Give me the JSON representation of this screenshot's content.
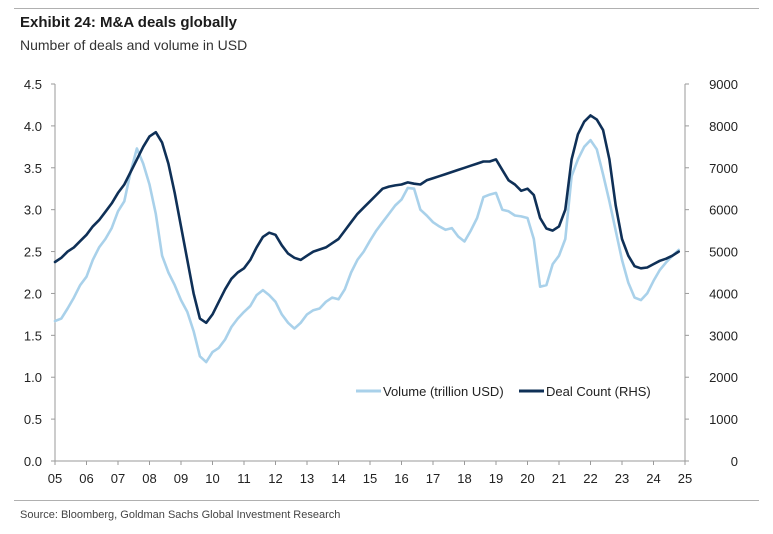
{
  "header": {
    "title": "Exhibit 24: M&A deals globally",
    "subtitle": "Number of deals and volume in USD"
  },
  "footer": {
    "source": "Source: Bloomberg, Goldman Sachs Global Investment Research"
  },
  "colors": {
    "volume": "#a9d1ea",
    "deal_count": "#0f3057",
    "axis": "#9a9a9a"
  },
  "chart_data": {
    "type": "line",
    "title": "Exhibit 24: M&A deals globally",
    "subtitle": "Number of deals and volume in USD",
    "xlabel": "",
    "ylabel": "",
    "xlim": [
      5,
      25
    ],
    "ylim_left": [
      0,
      4.5
    ],
    "ylim_right": [
      0,
      9000
    ],
    "x_tick_values": [
      5,
      6,
      7,
      8,
      9,
      10,
      11,
      12,
      13,
      14,
      15,
      16,
      17,
      18,
      19,
      20,
      21,
      22,
      23,
      24,
      25
    ],
    "x_tick_labels": [
      "05",
      "06",
      "07",
      "08",
      "09",
      "10",
      "11",
      "12",
      "13",
      "14",
      "15",
      "16",
      "17",
      "18",
      "19",
      "20",
      "21",
      "22",
      "23",
      "24",
      "25"
    ],
    "y_left_tick_values": [
      0,
      0.5,
      1.0,
      1.5,
      2.0,
      2.5,
      3.0,
      3.5,
      4.0,
      4.5
    ],
    "y_left_tick_labels": [
      "0.0",
      "0.5",
      "1.0",
      "1.5",
      "2.0",
      "2.5",
      "3.0",
      "3.5",
      "4.0",
      "4.5"
    ],
    "y_right_tick_values": [
      0,
      1000,
      2000,
      3000,
      4000,
      5000,
      6000,
      7000,
      8000,
      9000
    ],
    "y_right_tick_labels": [
      "0",
      "1000",
      "2000",
      "3000",
      "4000",
      "5000",
      "6000",
      "7000",
      "8000",
      "9000"
    ],
    "grid": false,
    "legend_position": "lower-right",
    "series": [
      {
        "name": "Volume (trillion USD)",
        "axis": "left",
        "x": [
          5.0,
          5.2,
          5.4,
          5.6,
          5.8,
          6.0,
          6.2,
          6.4,
          6.6,
          6.8,
          7.0,
          7.2,
          7.4,
          7.6,
          7.8,
          8.0,
          8.2,
          8.4,
          8.6,
          8.8,
          9.0,
          9.2,
          9.4,
          9.6,
          9.8,
          10.0,
          10.2,
          10.4,
          10.6,
          10.8,
          11.0,
          11.2,
          11.4,
          11.6,
          11.8,
          12.0,
          12.2,
          12.4,
          12.6,
          12.8,
          13.0,
          13.2,
          13.4,
          13.6,
          13.8,
          14.0,
          14.2,
          14.4,
          14.6,
          14.8,
          15.0,
          15.2,
          15.4,
          15.6,
          15.8,
          16.0,
          16.2,
          16.4,
          16.6,
          16.8,
          17.0,
          17.2,
          17.4,
          17.6,
          17.8,
          18.0,
          18.2,
          18.4,
          18.6,
          18.8,
          19.0,
          19.2,
          19.4,
          19.6,
          19.8,
          20.0,
          20.2,
          20.4,
          20.6,
          20.8,
          21.0,
          21.2,
          21.4,
          21.6,
          21.8,
          22.0,
          22.2,
          22.4,
          22.6,
          22.8,
          23.0,
          23.2,
          23.4,
          23.6,
          23.8,
          24.0,
          24.2,
          24.4,
          24.6,
          24.8
        ],
        "values": [
          1.67,
          1.7,
          1.82,
          1.95,
          2.1,
          2.2,
          2.4,
          2.55,
          2.65,
          2.78,
          2.98,
          3.1,
          3.45,
          3.73,
          3.55,
          3.3,
          2.95,
          2.45,
          2.25,
          2.1,
          1.92,
          1.78,
          1.55,
          1.25,
          1.18,
          1.3,
          1.35,
          1.45,
          1.6,
          1.7,
          1.78,
          1.85,
          1.98,
          2.04,
          1.98,
          1.9,
          1.75,
          1.65,
          1.58,
          1.65,
          1.75,
          1.8,
          1.82,
          1.9,
          1.95,
          1.93,
          2.05,
          2.25,
          2.4,
          2.5,
          2.63,
          2.75,
          2.85,
          2.95,
          3.05,
          3.12,
          3.26,
          3.25,
          3.0,
          2.93,
          2.85,
          2.8,
          2.76,
          2.78,
          2.68,
          2.62,
          2.75,
          2.9,
          3.15,
          3.18,
          3.2,
          3.0,
          2.98,
          2.93,
          2.92,
          2.9,
          2.65,
          2.08,
          2.1,
          2.35,
          2.45,
          2.65,
          3.4,
          3.6,
          3.75,
          3.83,
          3.72,
          3.42,
          3.1,
          2.75,
          2.4,
          2.13,
          1.95,
          1.92,
          2.0,
          2.15,
          2.28,
          2.37,
          2.45,
          2.52
        ]
      },
      {
        "name": "Deal Count (RHS)",
        "axis": "right",
        "x": [
          5.0,
          5.2,
          5.4,
          5.6,
          5.8,
          6.0,
          6.2,
          6.4,
          6.6,
          6.8,
          7.0,
          7.2,
          7.4,
          7.6,
          7.8,
          8.0,
          8.2,
          8.4,
          8.6,
          8.8,
          9.0,
          9.2,
          9.4,
          9.6,
          9.8,
          10.0,
          10.2,
          10.4,
          10.6,
          10.8,
          11.0,
          11.2,
          11.4,
          11.6,
          11.8,
          12.0,
          12.2,
          12.4,
          12.6,
          12.8,
          13.0,
          13.2,
          13.4,
          13.6,
          13.8,
          14.0,
          14.2,
          14.4,
          14.6,
          14.8,
          15.0,
          15.2,
          15.4,
          15.6,
          15.8,
          16.0,
          16.2,
          16.4,
          16.6,
          16.8,
          17.0,
          17.2,
          17.4,
          17.6,
          17.8,
          18.0,
          18.2,
          18.4,
          18.6,
          18.8,
          19.0,
          19.2,
          19.4,
          19.6,
          19.8,
          20.0,
          20.2,
          20.4,
          20.6,
          20.8,
          21.0,
          21.2,
          21.4,
          21.6,
          21.8,
          22.0,
          22.2,
          22.4,
          22.6,
          22.8,
          23.0,
          23.2,
          23.4,
          23.6,
          23.8,
          24.0,
          24.2,
          24.4,
          24.6,
          24.8
        ],
        "values": [
          4750,
          4850,
          5000,
          5100,
          5250,
          5400,
          5600,
          5750,
          5950,
          6150,
          6400,
          6600,
          6900,
          7200,
          7500,
          7750,
          7850,
          7600,
          7100,
          6400,
          5600,
          4800,
          4000,
          3400,
          3300,
          3500,
          3800,
          4100,
          4350,
          4500,
          4600,
          4800,
          5100,
          5350,
          5450,
          5400,
          5150,
          4950,
          4850,
          4800,
          4900,
          5000,
          5050,
          5100,
          5200,
          5300,
          5500,
          5700,
          5900,
          6050,
          6200,
          6350,
          6500,
          6550,
          6580,
          6600,
          6650,
          6620,
          6600,
          6700,
          6750,
          6800,
          6850,
          6900,
          6950,
          7000,
          7050,
          7100,
          7150,
          7150,
          7200,
          6950,
          6700,
          6600,
          6450,
          6500,
          6350,
          5800,
          5550,
          5500,
          5600,
          6000,
          7200,
          7800,
          8100,
          8250,
          8150,
          7900,
          7200,
          6100,
          5300,
          4900,
          4650,
          4600,
          4620,
          4700,
          4780,
          4830,
          4900,
          5000
        ]
      }
    ]
  }
}
